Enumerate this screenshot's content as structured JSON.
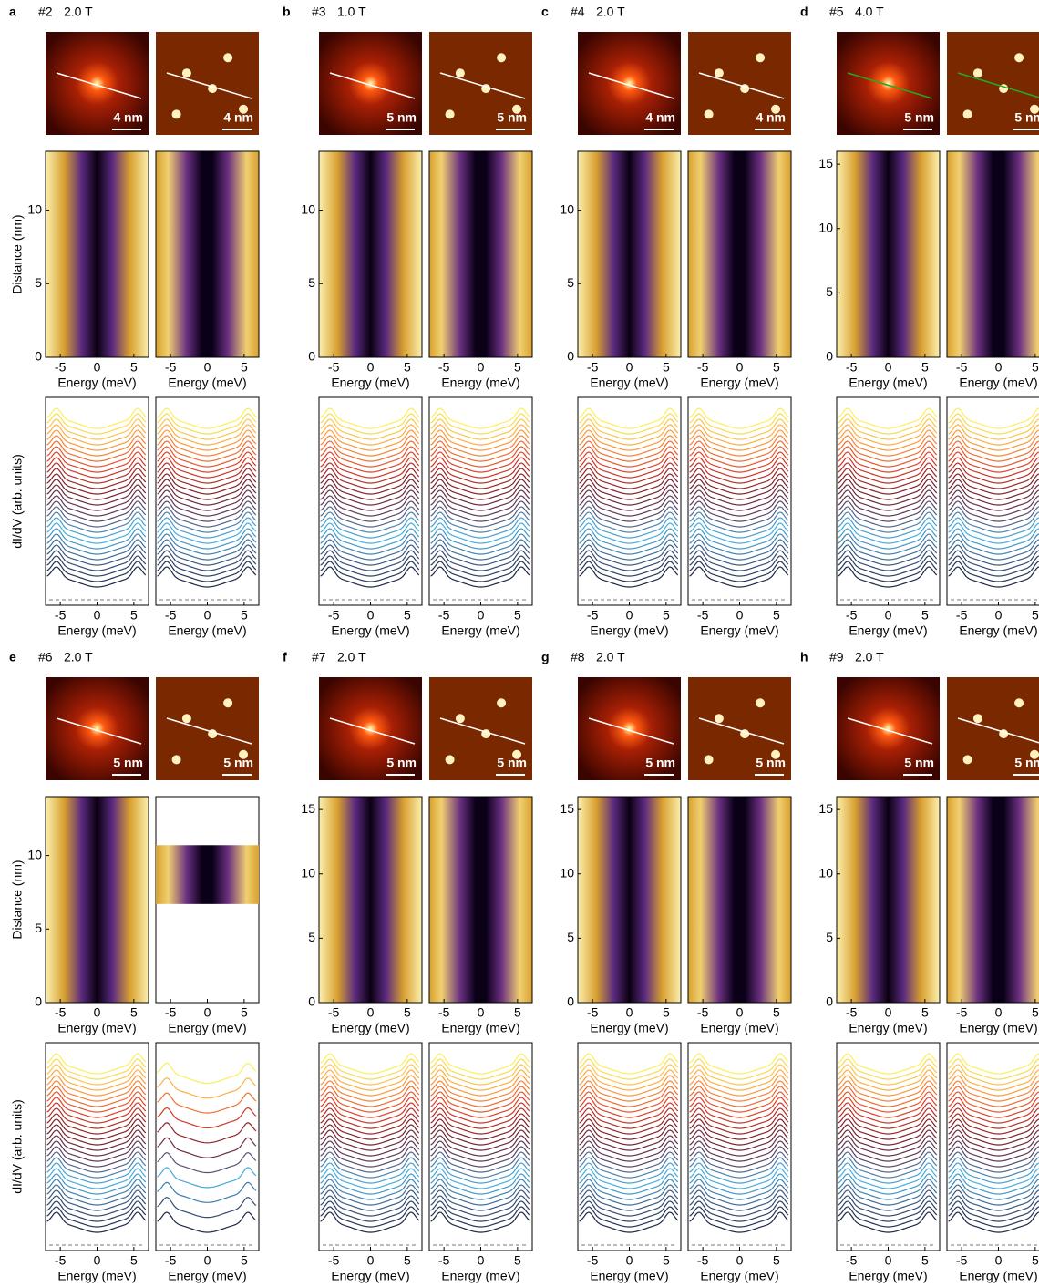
{
  "figure": {
    "energy_label": "Energy (meV)",
    "distance_label": "Distance (nm)",
    "didv_label": "dI/dV (arb. units)",
    "energy_xlim": [
      -7,
      7
    ],
    "energy_xticks": [
      -5,
      0,
      5
    ],
    "panels": [
      {
        "label": "a",
        "sample": "#2",
        "field": "2.0 T",
        "scale_bars": [
          "4 nm",
          "4 nm"
        ],
        "distance_ylim": [
          0,
          14
        ],
        "distance_yticks": [
          0,
          5,
          10
        ]
      },
      {
        "label": "b",
        "sample": "#3",
        "field": "1.0 T",
        "scale_bars": [
          "5 nm",
          "5 nm"
        ],
        "distance_ylim": [
          0,
          14
        ],
        "distance_yticks": [
          0,
          5,
          10
        ]
      },
      {
        "label": "c",
        "sample": "#4",
        "field": "2.0 T",
        "scale_bars": [
          "4 nm",
          "4 nm"
        ],
        "distance_ylim": [
          0,
          14
        ],
        "distance_yticks": [
          0,
          5,
          10
        ]
      },
      {
        "label": "d",
        "sample": "#5",
        "field": "4.0 T",
        "scale_bars": [
          "5 nm",
          "5 nm"
        ],
        "distance_ylim": [
          0,
          16
        ],
        "distance_yticks": [
          0,
          5,
          10,
          15
        ]
      },
      {
        "label": "e",
        "sample": "#6",
        "field": "2.0 T",
        "scale_bars": [
          "5 nm",
          "5 nm"
        ],
        "distance_ylim": [
          0,
          14
        ],
        "distance_yticks": [
          0,
          5,
          10
        ],
        "right_map_range": [
          6.7,
          10.7
        ]
      },
      {
        "label": "f",
        "sample": "#7",
        "field": "2.0 T",
        "scale_bars": [
          "5 nm",
          "5 nm"
        ],
        "distance_ylim": [
          0,
          16
        ],
        "distance_yticks": [
          0,
          5,
          10,
          15
        ]
      },
      {
        "label": "g",
        "sample": "#8",
        "field": "2.0 T",
        "scale_bars": [
          "5 nm",
          "5 nm"
        ],
        "distance_ylim": [
          0,
          16
        ],
        "distance_yticks": [
          0,
          5,
          10,
          15
        ]
      },
      {
        "label": "h",
        "sample": "#9",
        "field": "2.0 T",
        "scale_bars": [
          "5 nm",
          "5 nm"
        ],
        "distance_ylim": [
          0,
          16
        ],
        "distance_yticks": [
          0,
          5,
          10,
          15
        ]
      }
    ]
  }
}
